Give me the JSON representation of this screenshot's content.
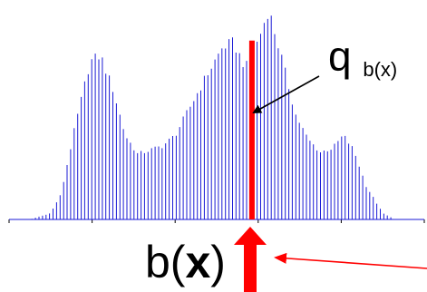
{
  "chart_data": {
    "type": "bar",
    "title": "",
    "xlabel": "",
    "ylabel": "",
    "bar_color": "#1a1ad6",
    "highlight_color": "#ff0000",
    "grid": false,
    "legend": "none",
    "bin_count": 118,
    "ylim": [
      0,
      1
    ],
    "profile_points": [
      [
        0.0,
        0.0
      ],
      [
        0.05,
        0.0
      ],
      [
        0.1,
        0.03
      ],
      [
        0.125,
        0.12
      ],
      [
        0.16,
        0.45
      ],
      [
        0.195,
        0.75
      ],
      [
        0.22,
        0.78
      ],
      [
        0.25,
        0.62
      ],
      [
        0.28,
        0.4
      ],
      [
        0.31,
        0.31
      ],
      [
        0.34,
        0.33
      ],
      [
        0.37,
        0.35
      ],
      [
        0.4,
        0.4
      ],
      [
        0.44,
        0.55
      ],
      [
        0.48,
        0.7
      ],
      [
        0.515,
        0.82
      ],
      [
        0.54,
        0.84
      ],
      [
        0.57,
        0.72
      ],
      [
        0.6,
        0.85
      ],
      [
        0.625,
        1.0
      ],
      [
        0.655,
        0.78
      ],
      [
        0.69,
        0.5
      ],
      [
        0.72,
        0.38
      ],
      [
        0.75,
        0.32
      ],
      [
        0.78,
        0.34
      ],
      [
        0.805,
        0.4
      ],
      [
        0.83,
        0.33
      ],
      [
        0.86,
        0.16
      ],
      [
        0.9,
        0.03
      ],
      [
        0.93,
        0.0
      ],
      [
        1.0,
        0.0
      ]
    ],
    "highlight_bin_position": 0.585,
    "highlight_bin_value": 0.85,
    "annotations": {
      "q_label_main": "q",
      "q_label_sub": "b(x)",
      "b_label_prefix": "b(",
      "b_label_var": "x",
      "b_label_suffix": ")"
    }
  }
}
